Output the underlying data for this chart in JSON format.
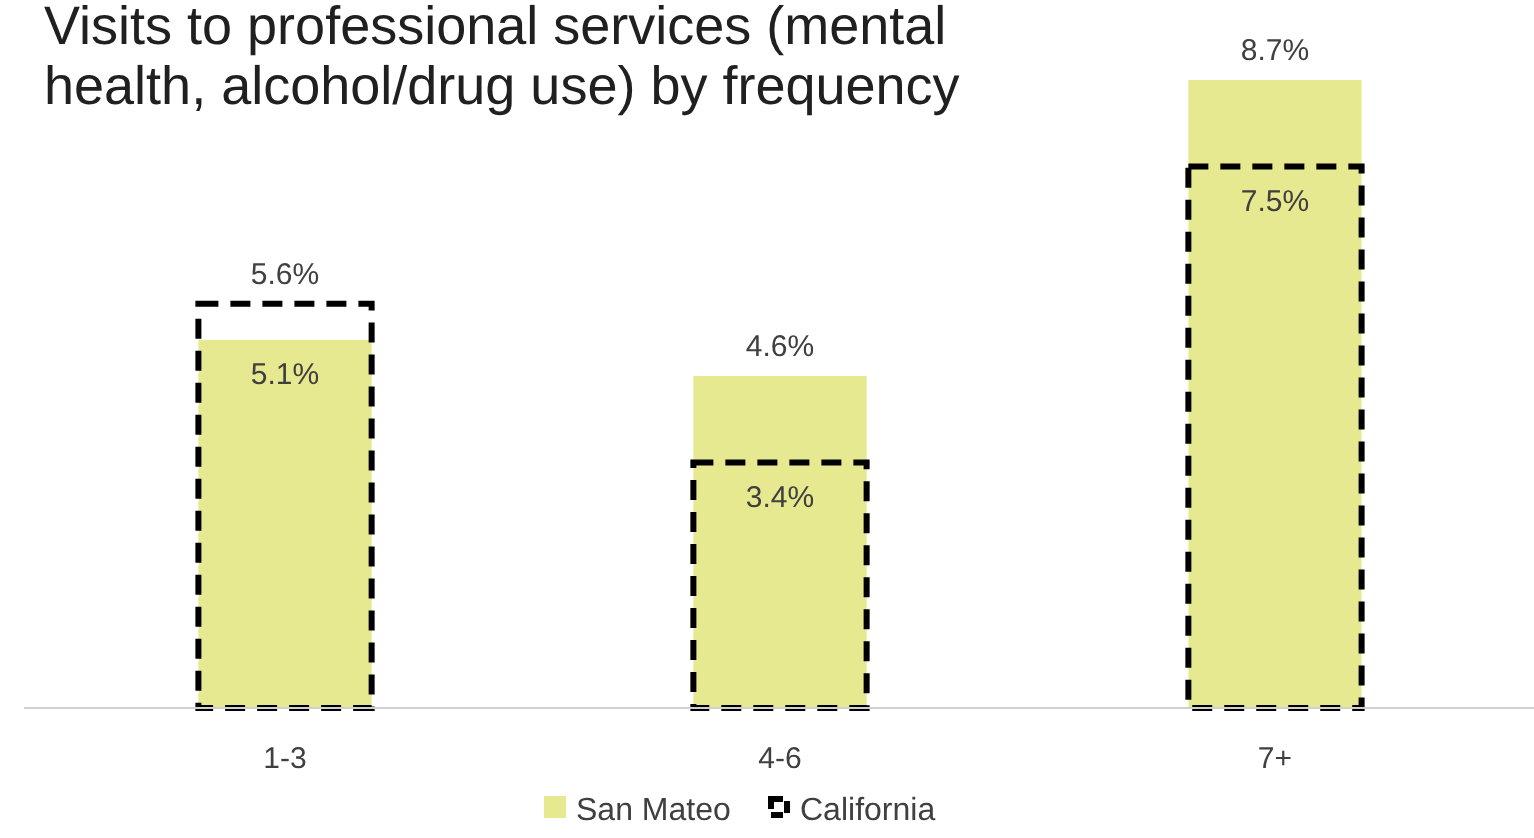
{
  "chart_data": {
    "type": "bar",
    "title": "Visits to professional services (mental health, alcohol/drug use) by frequency",
    "categories": [
      "1-3",
      "4-6",
      "7+"
    ],
    "series": [
      {
        "name": "San Mateo",
        "color": "#e6e98f",
        "values": [
          5.1,
          4.6,
          8.7
        ],
        "value_labels": [
          "5.1%",
          "4.6%",
          "8.7%"
        ]
      },
      {
        "name": "California",
        "color": "#000000",
        "line_style": "dashed",
        "values": [
          5.6,
          3.4,
          7.5
        ],
        "value_labels": [
          "5.6%",
          "3.4%",
          "7.5%"
        ]
      }
    ],
    "legend": "bottom"
  }
}
